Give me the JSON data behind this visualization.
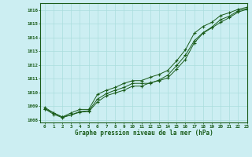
{
  "xlabel": "Graphe pression niveau de la mer (hPa)",
  "bg_color": "#cceef2",
  "grid_color": "#aadddd",
  "line_color": "#1a5c1a",
  "spine_color": "#1a5c1a",
  "xlim": [
    -0.5,
    23
  ],
  "ylim": [
    1007.8,
    1016.5
  ],
  "yticks": [
    1008,
    1009,
    1010,
    1011,
    1012,
    1013,
    1014,
    1015,
    1016
  ],
  "xticks": [
    0,
    1,
    2,
    3,
    4,
    5,
    6,
    7,
    8,
    9,
    10,
    11,
    12,
    13,
    14,
    15,
    16,
    17,
    18,
    19,
    20,
    21,
    22,
    23
  ],
  "series1": [
    1008.8,
    1008.5,
    1008.2,
    1008.35,
    1008.55,
    1008.6,
    1009.3,
    1009.75,
    1009.95,
    1010.15,
    1010.45,
    1010.45,
    1010.7,
    1010.85,
    1011.05,
    1011.7,
    1012.4,
    1013.6,
    1014.3,
    1014.7,
    1015.1,
    1015.45,
    1015.85,
    1016.05
  ],
  "series2": [
    1008.8,
    1008.4,
    1008.15,
    1008.35,
    1008.6,
    1008.65,
    1009.5,
    1009.9,
    1010.15,
    1010.35,
    1010.65,
    1010.65,
    1010.65,
    1010.9,
    1011.25,
    1011.95,
    1012.7,
    1013.75,
    1014.35,
    1014.75,
    1015.3,
    1015.55,
    1015.95,
    1016.1
  ],
  "series3": [
    1008.9,
    1008.5,
    1008.2,
    1008.5,
    1008.75,
    1008.75,
    1009.85,
    1010.15,
    1010.35,
    1010.65,
    1010.85,
    1010.85,
    1011.1,
    1011.3,
    1011.6,
    1012.3,
    1013.1,
    1014.3,
    1014.8,
    1015.1,
    1015.6,
    1015.8,
    1016.05,
    1016.2
  ]
}
